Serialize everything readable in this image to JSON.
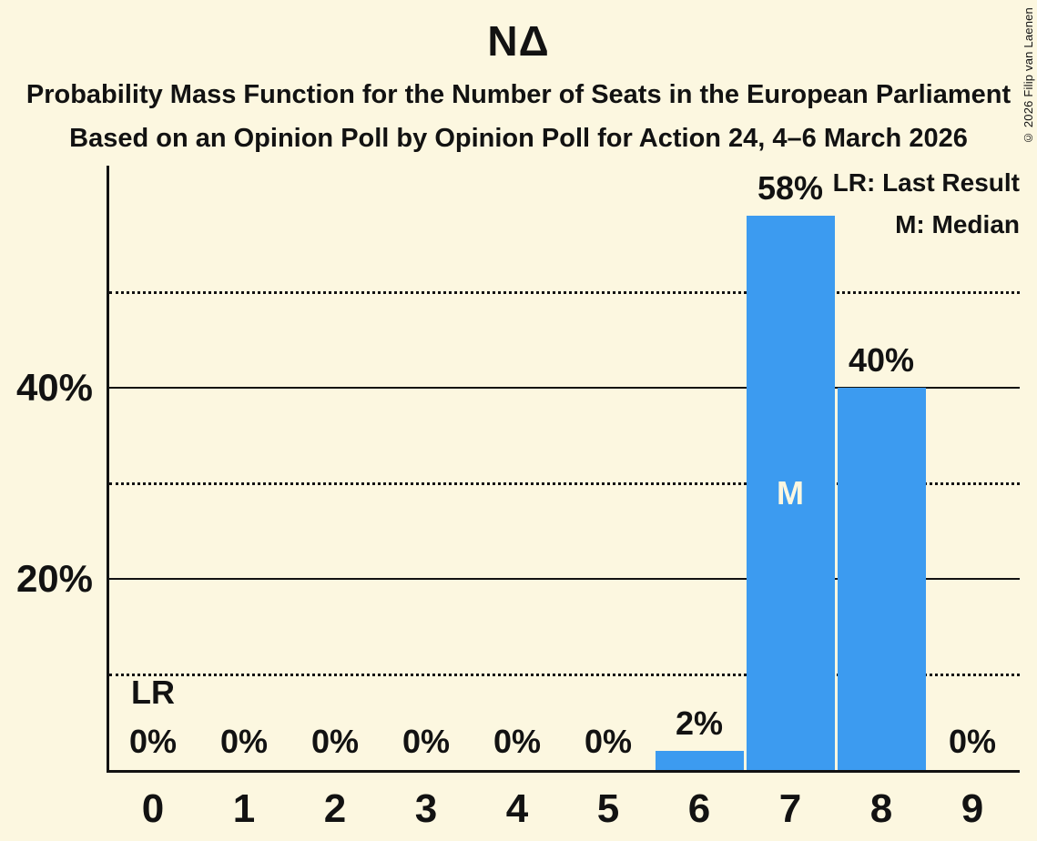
{
  "title": "NΔ",
  "subtitle1": "Probability Mass Function for the Number of Seats in the European Parliament",
  "subtitle2": "Based on an Opinion Poll by Opinion Poll for Action 24, 4–6 March 2026",
  "copyright": "© 2026 Filip van Laenen",
  "legend": {
    "lr": "LR: Last Result",
    "m": "M: Median"
  },
  "colors": {
    "background": "#FCF7E0",
    "bar": "#3C9BF0",
    "text": "#121212",
    "median_label_on_bar": "#FCF7E0"
  },
  "chart_data": {
    "type": "bar",
    "title": "NΔ",
    "xlabel": "",
    "ylabel": "",
    "categories": [
      "0",
      "1",
      "2",
      "3",
      "4",
      "5",
      "6",
      "7",
      "8",
      "9"
    ],
    "values": [
      0,
      0,
      0,
      0,
      0,
      0,
      2,
      58,
      40,
      0
    ],
    "bar_labels": [
      "0%",
      "0%",
      "0%",
      "0%",
      "0%",
      "0%",
      "2%",
      "58%",
      "40%",
      "0%"
    ],
    "ylim": [
      0,
      63
    ],
    "grid": "horizontal",
    "legend_position": "top-right",
    "y_axis": {
      "solid_gridlines": [
        20,
        40
      ],
      "dotted_gridlines": [
        10,
        30,
        50
      ],
      "ticks": [
        20,
        40
      ],
      "tick_labels": [
        "20%",
        "40%"
      ]
    },
    "annotations": {
      "last_result_label": "LR",
      "last_result_seat": 0,
      "median_label": "M",
      "median_seat": 7
    }
  }
}
